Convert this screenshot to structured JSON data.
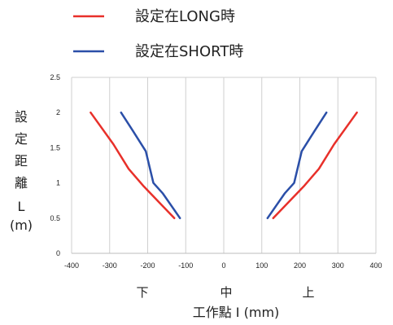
{
  "chart_data": {
    "type": "line",
    "xlabel": "工作點 I (mm)",
    "ylabel_lines": [
      "設",
      "定",
      "距",
      "離",
      "L",
      "(m)"
    ],
    "direction_labels": [
      "下",
      "中",
      "上"
    ],
    "xlim": [
      -400,
      400
    ],
    "ylim": [
      0,
      2.5
    ],
    "xticks": [
      -400,
      -300,
      -200,
      -100,
      0,
      100,
      200,
      300,
      400
    ],
    "yticks": [
      0,
      0.5,
      1,
      1.5,
      2,
      2.5
    ],
    "grid": "vertical",
    "legend_position": "top",
    "series": [
      {
        "name": "設定在LONG時",
        "color": "#e8302a",
        "segments": [
          [
            [
              -350,
              2.0
            ],
            [
              -290,
              1.55
            ],
            [
              -250,
              1.2
            ],
            [
              -210,
              0.95
            ],
            [
              -130,
              0.5
            ]
          ],
          [
            [
              130,
              0.5
            ],
            [
              210,
              0.95
            ],
            [
              250,
              1.2
            ],
            [
              290,
              1.55
            ],
            [
              350,
              2.0
            ]
          ]
        ]
      },
      {
        "name": "設定在SHORT時",
        "color": "#2b4fa8",
        "segments": [
          [
            [
              -270,
              2.0
            ],
            [
              -240,
              1.75
            ],
            [
              -205,
              1.45
            ],
            [
              -185,
              1.0
            ],
            [
              -160,
              0.85
            ],
            [
              -115,
              0.5
            ]
          ],
          [
            [
              115,
              0.5
            ],
            [
              160,
              0.85
            ],
            [
              185,
              1.0
            ],
            [
              205,
              1.45
            ],
            [
              240,
              1.75
            ],
            [
              270,
              2.0
            ]
          ]
        ]
      }
    ]
  }
}
